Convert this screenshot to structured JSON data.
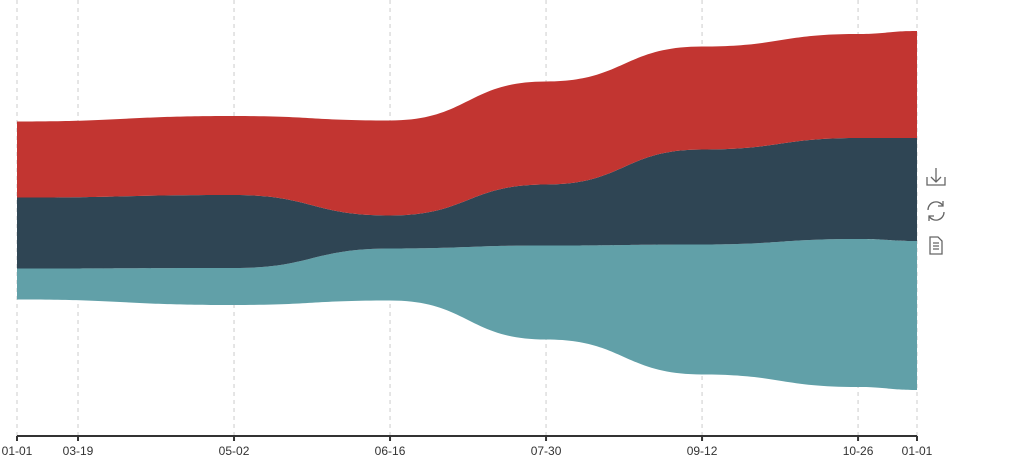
{
  "chart_data": {
    "type": "themeriver",
    "x": [
      0,
      62.6,
      107.6,
      152.6,
      197.6,
      242.6,
      259.6
    ],
    "xlim": [
      0,
      259.6
    ],
    "xticks": [
      {
        "value": 0,
        "label": "01-01"
      },
      {
        "value": 17.6,
        "label": "03-19"
      },
      {
        "value": 62.6,
        "label": "05-02"
      },
      {
        "value": 107.6,
        "label": "06-16"
      },
      {
        "value": 152.6,
        "label": "07-30"
      },
      {
        "value": 197.6,
        "label": "09-12"
      },
      {
        "value": 242.6,
        "label": "10-26"
      },
      {
        "value": 259.6,
        "label": "01-01"
      }
    ],
    "grid": true,
    "series": [
      {
        "color": "#61a0a8",
        "values": [
          31,
          37,
          52,
          94,
          130,
          148,
          149
        ]
      },
      {
        "color": "#2f4554",
        "values": [
          71,
          73,
          33,
          61,
          95,
          101,
          103
        ]
      },
      {
        "color": "#c23531",
        "values": [
          76,
          79,
          95,
          103,
          103,
          104,
          107
        ]
      }
    ]
  }
}
